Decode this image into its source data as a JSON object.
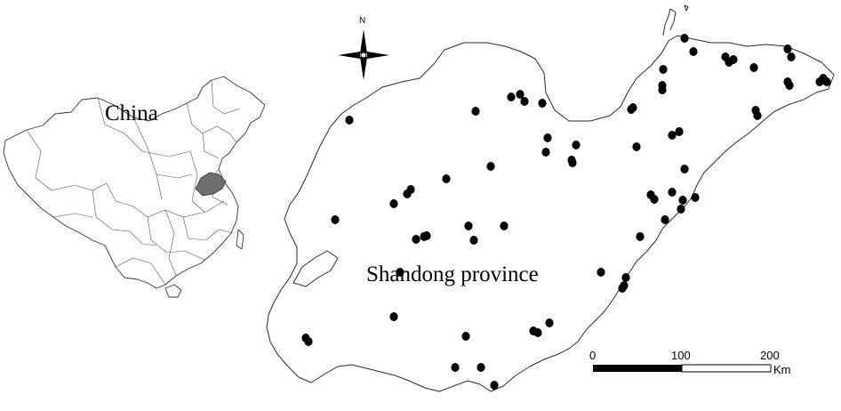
{
  "labels": {
    "country": "China",
    "province": "Shandong province",
    "north": "N"
  },
  "scale_bar": {
    "ticks": [
      "0",
      "100",
      "200"
    ],
    "unit": "Km"
  },
  "colors": {
    "site_points": "#000000",
    "highlight_region": "#6e6e6e",
    "outline": "#2a2a2a"
  },
  "sample_site_count": 70
}
